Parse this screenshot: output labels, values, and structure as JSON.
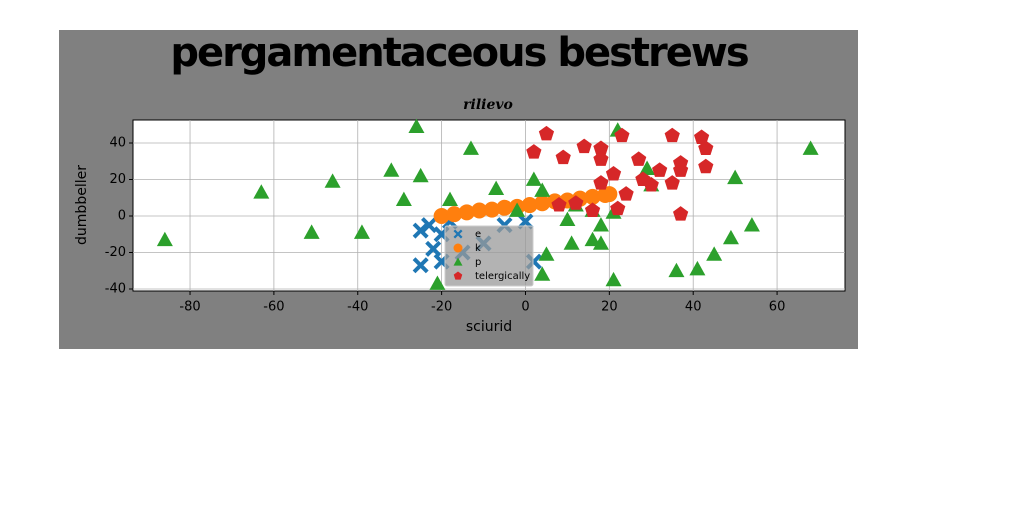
{
  "chart_data": {
    "type": "scatter",
    "title": "pergamentaceous bestrews",
    "subtitle": "rilievo",
    "xlabel": "sciurid",
    "ylabel": "dumbbeller",
    "xlim": [
      -93.6,
      76.2
    ],
    "ylim": [
      -41.1,
      52.6
    ],
    "xticks": [
      -80,
      -60,
      -40,
      -20,
      0,
      20,
      40,
      60
    ],
    "yticks": [
      -40,
      -20,
      0,
      20,
      40
    ],
    "grid": true,
    "legend_loc": "lower center",
    "series": [
      {
        "name": "e",
        "color": "#1f77b4",
        "marker": "x",
        "x": [
          -25,
          -23,
          -20,
          -22,
          -25,
          -20,
          -5,
          0,
          2,
          -15,
          -10,
          -18
        ],
        "y": [
          -8,
          -5,
          -10,
          -18,
          -27,
          -25,
          -5,
          -3,
          -25,
          -20,
          -15,
          -3
        ]
      },
      {
        "name": "k",
        "color": "#ff7f0e",
        "marker": "o",
        "x": [
          -20,
          -17,
          -14,
          -11,
          -8,
          -5,
          -2,
          1,
          4,
          7,
          10,
          13,
          16,
          19,
          20
        ],
        "y": [
          0,
          1,
          2,
          3,
          3.5,
          4.5,
          5,
          6,
          7,
          8,
          8.5,
          9.5,
          10.5,
          11.5,
          12
        ]
      },
      {
        "name": "p",
        "color": "#2ca02c",
        "marker": "^",
        "x": [
          -86,
          -63,
          -51,
          -46,
          -39,
          -32,
          -29,
          -26,
          -25,
          -21,
          -18,
          -13,
          -7,
          -2,
          2,
          4,
          4,
          5,
          10,
          11,
          12,
          16,
          16,
          18,
          18,
          21,
          21,
          22,
          29,
          30,
          36,
          41,
          45,
          49,
          50,
          54,
          68
        ],
        "y": [
          -13,
          13,
          -9,
          19,
          -9,
          25,
          9,
          49,
          22,
          -37,
          9,
          37,
          15,
          3,
          20,
          14,
          -32,
          -21,
          -2,
          -15,
          6,
          3,
          -13,
          -15,
          -5,
          -35,
          2,
          47,
          26,
          17,
          -30,
          -29,
          -21,
          -12,
          21,
          -5,
          37
        ]
      },
      {
        "name": "telergically",
        "color": "#d62728",
        "marker": "p",
        "x": [
          2,
          5,
          9,
          14,
          18,
          18,
          18,
          21,
          8,
          12,
          16,
          22,
          23,
          24,
          27,
          28,
          30,
          32,
          35,
          35,
          37,
          37,
          37,
          42,
          43,
          43
        ],
        "y": [
          35,
          45,
          32,
          38,
          37,
          31,
          18,
          23,
          6,
          7,
          3,
          4,
          44,
          12,
          31,
          20,
          17,
          25,
          44,
          18,
          25,
          29,
          1,
          43,
          37,
          27
        ]
      }
    ]
  }
}
